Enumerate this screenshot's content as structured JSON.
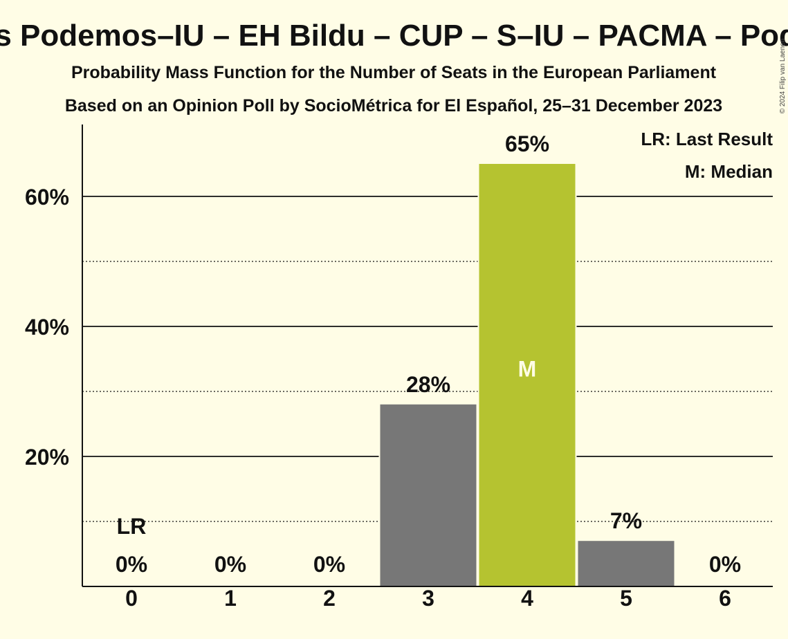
{
  "title": "Unidas Podemos–IU – EH Bildu – CUP – S–IU – PACMA – Podemos",
  "subtitle1": "Probability Mass Function for the Number of Seats in the European Parliament",
  "subtitle2": "Based on an Opinion Poll by SocioMétrica for El Español, 25–31 December 2023",
  "legend": [
    "LR: Last Result",
    "M: Median"
  ],
  "copyright": "© 2024 Filip van Laenen",
  "colors": {
    "background": "#fffde6",
    "bar": "#777777",
    "median_bar": "#b5c330",
    "axis": "#111111"
  },
  "chart_data": {
    "type": "bar",
    "categories": [
      "0",
      "1",
      "2",
      "3",
      "4",
      "5",
      "6"
    ],
    "values": [
      0,
      0,
      0,
      28,
      65,
      7,
      0
    ],
    "value_labels": [
      "0%",
      "0%",
      "0%",
      "28%",
      "65%",
      "7%",
      "0%"
    ],
    "y_ticks": [
      20,
      40,
      60
    ],
    "y_tick_labels": [
      "20%",
      "40%",
      "60%"
    ],
    "y_minor_ticks": [
      10,
      30,
      50
    ],
    "ylim": [
      0,
      70
    ],
    "median_index": 4,
    "median_label": "M",
    "last_result_index": 0,
    "last_result_label": "LR"
  }
}
